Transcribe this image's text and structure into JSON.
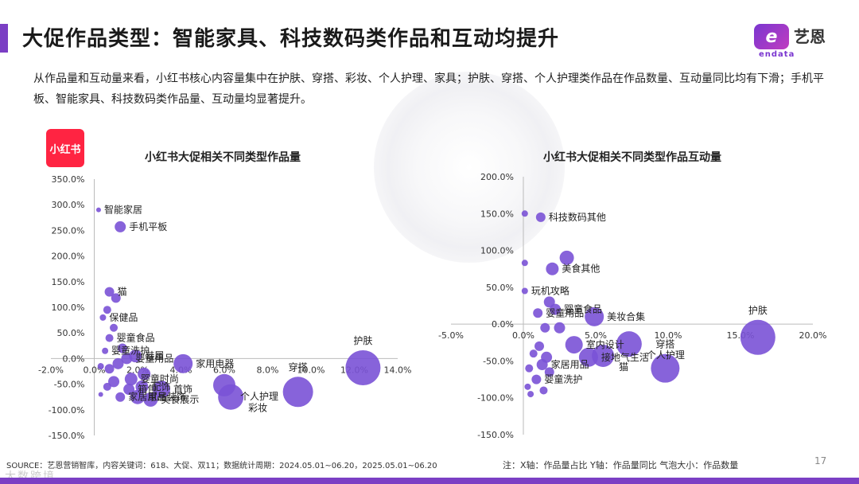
{
  "header": {
    "title": "大促作品类型：智能家具、科技数码类作品和互动均提升",
    "logo_mark": "e",
    "logo_text": "艺恩",
    "logo_sub": "endata"
  },
  "description": "从作品量和互动量来看，小红书核心内容量集中在护肤、穿搭、彩妆、个人护理、家具；护肤、穿搭、个人护理类作品在作品数量、互动量同比均有下滑；手机平板、智能家具、科技数码类作品量、互动量均显著提升。",
  "badge": "小红书",
  "footer": {
    "source": "SOURCE：艺恩营销智库，内容关键词：618、大促、双11；数据统计周期：2024.05.01~06.20，2025.05.01~06.20",
    "note": "注：X轴：作品量占比   Y轴：作品量同比   气泡大小：作品数量",
    "page": "17",
    "watermark": "大数跨境"
  },
  "colors": {
    "accent": "#7b3fc4",
    "bubble": "#7a52d6",
    "badge": "#ff2442"
  },
  "chart_data": [
    {
      "type": "scatter",
      "title": "小红书大促相关不同类型作品量",
      "xlim": [
        -2,
        14
      ],
      "ylim": [
        -150,
        350
      ],
      "x_ticks": [
        "-2.0%",
        "0.0%",
        "2.0%",
        "4.0%",
        "6.0%",
        "8.0%",
        "10.0%",
        "12.0%",
        "14.0%"
      ],
      "y_ticks": [
        "350.0%",
        "300.0%",
        "250.0%",
        "200.0%",
        "150.0%",
        "100.0%",
        "50.0%",
        "0.0%",
        "-50.0%",
        "-100.0%",
        "-150.0%"
      ],
      "points": [
        {
          "x": 12.4,
          "y": -18,
          "r": 22,
          "label": "护肤"
        },
        {
          "x": 9.4,
          "y": -65,
          "r": 19,
          "label": "穿搭"
        },
        {
          "x": 6.3,
          "y": -75,
          "r": 16,
          "label": "彩妆"
        },
        {
          "x": 6.0,
          "y": -52,
          "r": 14,
          "label": "个人护理"
        },
        {
          "x": 4.1,
          "y": -10,
          "r": 12,
          "label": "家用电器"
        },
        {
          "x": 3.1,
          "y": -60,
          "r": 11,
          "label": "首饰"
        },
        {
          "x": 1.2,
          "y": 257,
          "r": 7,
          "label": "手机平板"
        },
        {
          "x": 0.2,
          "y": 290,
          "r": 3,
          "label": "智能家居"
        },
        {
          "x": 0.7,
          "y": 130,
          "r": 6,
          "label": "猫"
        },
        {
          "x": 1.0,
          "y": 118,
          "r": 6,
          "label": ""
        },
        {
          "x": 0.6,
          "y": 95,
          "r": 5,
          "label": ""
        },
        {
          "x": 0.4,
          "y": 80,
          "r": 4,
          "label": "保健品"
        },
        {
          "x": 0.9,
          "y": 60,
          "r": 5,
          "label": ""
        },
        {
          "x": 0.7,
          "y": 40,
          "r": 5,
          "label": "婴童食品"
        },
        {
          "x": 1.3,
          "y": 20,
          "r": 6,
          "label": ""
        },
        {
          "x": 0.5,
          "y": 15,
          "r": 4,
          "label": "婴童洗护"
        },
        {
          "x": 1.9,
          "y": 5,
          "r": 8,
          "label": "鞋履"
        },
        {
          "x": 1.5,
          "y": 0,
          "r": 7,
          "label": "婴童用品"
        },
        {
          "x": 1.1,
          "y": -10,
          "r": 7,
          "label": ""
        },
        {
          "x": 0.7,
          "y": -20,
          "r": 6,
          "label": ""
        },
        {
          "x": 0.3,
          "y": -15,
          "r": 4,
          "label": ""
        },
        {
          "x": 2.3,
          "y": -30,
          "r": 8,
          "label": ""
        },
        {
          "x": 1.7,
          "y": -40,
          "r": 8,
          "label": "婴童时尚"
        },
        {
          "x": 0.9,
          "y": -45,
          "r": 7,
          "label": ""
        },
        {
          "x": 2.2,
          "y": -55,
          "r": 8,
          "label": "配饰"
        },
        {
          "x": 1.6,
          "y": -60,
          "r": 7,
          "label": "箱包"
        },
        {
          "x": 0.6,
          "y": -55,
          "r": 5,
          "label": ""
        },
        {
          "x": 2.0,
          "y": -75,
          "r": 9,
          "label": "家居装饰"
        },
        {
          "x": 2.6,
          "y": -80,
          "r": 9,
          "label": "美食展示"
        },
        {
          "x": 0.3,
          "y": -70,
          "r": 3,
          "label": ""
        },
        {
          "x": 1.2,
          "y": -75,
          "r": 6,
          "label": "家居用品"
        }
      ]
    },
    {
      "type": "scatter",
      "title": "小红书大促相关不同类型作品互动量",
      "xlim": [
        -5,
        20
      ],
      "ylim": [
        -150,
        200
      ],
      "x_ticks": [
        "-5.0%",
        "0.0%",
        "5.0%",
        "10.0%",
        "15.0%",
        "20.0%"
      ],
      "y_ticks": [
        "200.0%",
        "150.0%",
        "100.0%",
        "50.0%",
        "0.0%",
        "-50.0%",
        "-100.0%",
        "-150.0%"
      ],
      "points": [
        {
          "x": 16.2,
          "y": -18,
          "r": 22,
          "label": "护肤"
        },
        {
          "x": 9.8,
          "y": -60,
          "r": 18,
          "label": "穿搭"
        },
        {
          "x": 7.3,
          "y": -27,
          "r": 16,
          "label": "个人护理"
        },
        {
          "x": 5.5,
          "y": -43,
          "r": 14,
          "label": "猫"
        },
        {
          "x": 4.9,
          "y": 10,
          "r": 12,
          "label": "美妆合集"
        },
        {
          "x": 0.1,
          "y": 150,
          "r": 4,
          "label": ""
        },
        {
          "x": 1.2,
          "y": 145,
          "r": 6,
          "label": "科技数码其他"
        },
        {
          "x": 3.0,
          "y": 90,
          "r": 9,
          "label": ""
        },
        {
          "x": 2.0,
          "y": 75,
          "r": 8,
          "label": "美食其他"
        },
        {
          "x": 0.1,
          "y": 83,
          "r": 4,
          "label": ""
        },
        {
          "x": 0.1,
          "y": 45,
          "r": 4,
          "label": "玩机攻略"
        },
        {
          "x": 1.8,
          "y": 30,
          "r": 7,
          "label": ""
        },
        {
          "x": 2.2,
          "y": 20,
          "r": 7,
          "label": "婴童食品"
        },
        {
          "x": 1.0,
          "y": 15,
          "r": 6,
          "label": "婴童用品"
        },
        {
          "x": 1.5,
          "y": -5,
          "r": 6,
          "label": ""
        },
        {
          "x": 2.5,
          "y": -5,
          "r": 7,
          "label": ""
        },
        {
          "x": 3.5,
          "y": -28,
          "r": 11,
          "label": "室内设计"
        },
        {
          "x": 4.5,
          "y": -45,
          "r": 12,
          "label": "接地气生活"
        },
        {
          "x": 1.1,
          "y": -30,
          "r": 6,
          "label": ""
        },
        {
          "x": 0.7,
          "y": -40,
          "r": 5,
          "label": ""
        },
        {
          "x": 1.6,
          "y": -45,
          "r": 7,
          "label": ""
        },
        {
          "x": 1.3,
          "y": -55,
          "r": 7,
          "label": "家居用品"
        },
        {
          "x": 0.4,
          "y": -60,
          "r": 5,
          "label": ""
        },
        {
          "x": 1.8,
          "y": -65,
          "r": 6,
          "label": ""
        },
        {
          "x": 0.9,
          "y": -75,
          "r": 6,
          "label": "婴童洗护"
        },
        {
          "x": 0.3,
          "y": -85,
          "r": 4,
          "label": ""
        },
        {
          "x": 1.4,
          "y": -90,
          "r": 5,
          "label": ""
        },
        {
          "x": 0.5,
          "y": -95,
          "r": 4,
          "label": ""
        }
      ]
    }
  ]
}
